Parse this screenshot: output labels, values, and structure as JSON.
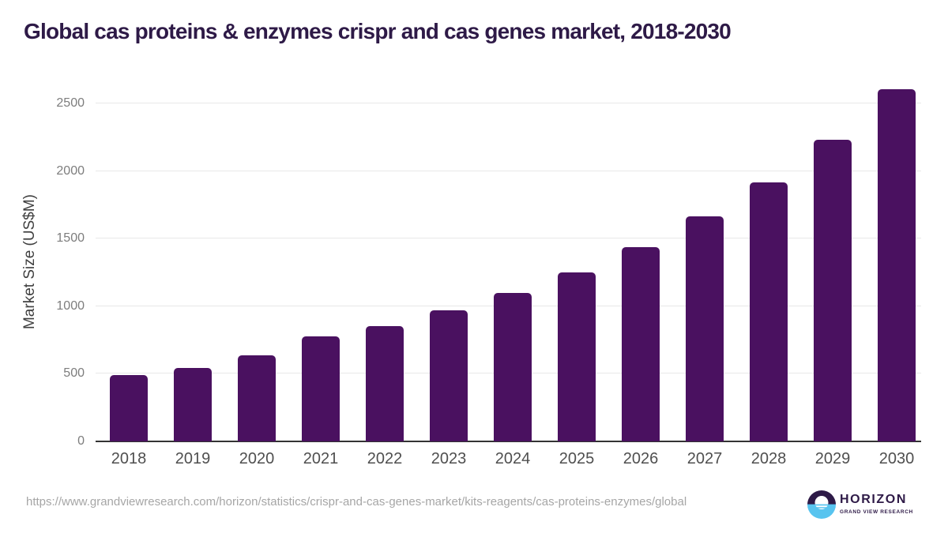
{
  "title": "Global cas proteins & enzymes crispr and cas genes market, 2018-2030",
  "chart_data": {
    "type": "bar",
    "title": "Global cas proteins & enzymes crispr and cas genes market, 2018-2030",
    "categories": [
      "2018",
      "2019",
      "2020",
      "2021",
      "2022",
      "2023",
      "2024",
      "2025",
      "2026",
      "2027",
      "2028",
      "2029",
      "2030"
    ],
    "values": [
      490,
      545,
      640,
      775,
      855,
      970,
      1100,
      1250,
      1440,
      1665,
      1915,
      2235,
      2610
    ],
    "xlabel": "",
    "ylabel": "Market Size (US$M)",
    "ylim": [
      0,
      2660
    ],
    "yticks": [
      0,
      500,
      1000,
      1500,
      2000,
      2500
    ],
    "grid": true,
    "legend": false,
    "bar_color": "#4a1160"
  },
  "footer": {
    "source_url": "https://www.grandviewresearch.com/horizon/statistics/crispr-and-cas-genes-market/kits-reagents/cas-proteins-enzymes/global",
    "logo": {
      "icon": "horizon-sun-logo-icon",
      "brand": "HORIZON",
      "tagline": "GRAND VIEW RESEARCH"
    }
  },
  "colors": {
    "background": "#ffffff",
    "title": "#2e1a47",
    "bar": "#4a1160",
    "gridline": "#e8e8e8",
    "axis_line": "#333333",
    "x_tick_label": "#4f4f4f",
    "y_tick_label": "#7d7d7d",
    "axis_title": "#3f3f3f",
    "source_url": "#a6a6a6",
    "logo_purple": "#2e1a47",
    "logo_blue": "#58c4ef"
  }
}
